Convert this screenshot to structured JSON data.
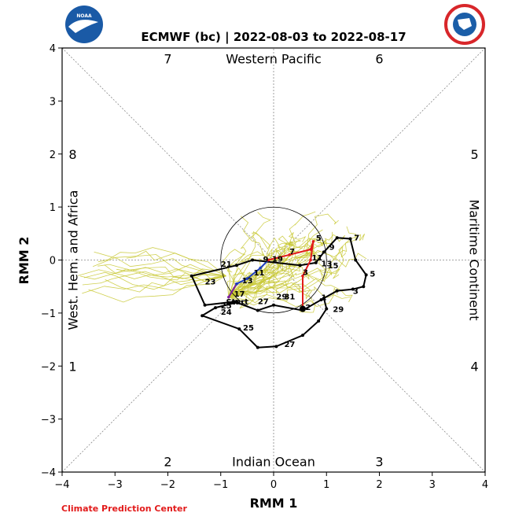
{
  "title": "ECMWF (bc) | 2022-08-03 to 2022-08-17",
  "footer": "Climate Prediction Center",
  "logos": {
    "left": {
      "name": "noaa-logo",
      "text": "NOAA",
      "bg": "#1a5aa6",
      "fg": "#ffffff"
    },
    "right": {
      "name": "nws-logo",
      "text": "NATIONAL WEATHER SERVICE",
      "ring": "#d8262a",
      "inner": "#1b5ea8"
    }
  },
  "chart_data": {
    "type": "line",
    "xlabel": "RMM 1",
    "ylabel": "RMM 2",
    "xlim": [
      -4,
      4
    ],
    "ylim": [
      -4,
      4
    ],
    "ticks": [
      -4,
      -3,
      -2,
      -1,
      0,
      1,
      2,
      3,
      4
    ],
    "tick_labels": [
      "−4",
      "−3",
      "−2",
      "−1",
      "0",
      "1",
      "2",
      "3",
      "4"
    ],
    "unit_circle_radius": 1,
    "phases": [
      {
        "label": "1",
        "x": -3.8,
        "y": -2.0
      },
      {
        "label": "2",
        "x": -2.0,
        "y": -3.8
      },
      {
        "label": "3",
        "x": 2.0,
        "y": -3.8
      },
      {
        "label": "4",
        "x": 3.8,
        "y": -2.0
      },
      {
        "label": "5",
        "x": 3.8,
        "y": 2.0
      },
      {
        "label": "6",
        "x": 2.0,
        "y": 3.8
      },
      {
        "label": "7",
        "x": -2.0,
        "y": 3.8
      },
      {
        "label": "8",
        "x": -3.8,
        "y": 2.0
      }
    ],
    "regions": [
      {
        "label": "Western Pacific",
        "x": 0,
        "y": 3.8,
        "rotate": 0
      },
      {
        "label": "Indian Ocean",
        "x": 0,
        "y": -3.8,
        "rotate": 0
      },
      {
        "label": "West. Hem. and Africa",
        "x": -3.8,
        "y": 0,
        "rotate": -90
      },
      {
        "label": "Maritime Continent",
        "x": 3.8,
        "y": 0,
        "rotate": 90
      }
    ],
    "observed": {
      "color": "#000000",
      "points": [
        [
          -0.7,
          -0.78
        ],
        [
          -1.3,
          -0.85
        ],
        [
          -1.55,
          -0.3
        ],
        [
          -0.7,
          -0.1
        ],
        [
          -0.4,
          0.0
        ],
        [
          0.5,
          -0.1
        ],
        [
          0.8,
          -0.05
        ],
        [
          0.95,
          0.15
        ],
        [
          1.2,
          0.42
        ],
        [
          1.45,
          0.4
        ],
        [
          1.55,
          0.0
        ],
        [
          1.75,
          -0.28
        ],
        [
          1.7,
          -0.5
        ],
        [
          1.5,
          -0.55
        ],
        [
          1.2,
          -0.58
        ],
        [
          0.9,
          -0.75
        ],
        [
          0.55,
          -0.95
        ],
        [
          0.0,
          -0.85
        ],
        [
          -0.3,
          -0.95
        ],
        [
          -0.7,
          -0.8
        ],
        [
          -1.1,
          -0.9
        ],
        [
          -1.35,
          -1.05
        ],
        [
          -0.65,
          -1.3
        ],
        [
          -0.3,
          -1.65
        ],
        [
          0.05,
          -1.63
        ],
        [
          0.55,
          -1.42
        ],
        [
          0.85,
          -1.15
        ],
        [
          1.0,
          -0.92
        ],
        [
          0.95,
          -0.72
        ]
      ],
      "labels": [
        {
          "text": "21",
          "x": -1.0,
          "y": -0.07
        },
        {
          "text": "23",
          "x": -1.3,
          "y": -0.4
        },
        {
          "text": "25",
          "x": -1.0,
          "y": -0.85
        },
        {
          "text": "27",
          "x": -0.3,
          "y": -0.77
        },
        {
          "text": "29",
          "x": 0.05,
          "y": -0.68
        },
        {
          "text": "24",
          "x": -1.0,
          "y": -0.97
        },
        {
          "text": "25",
          "x": -0.58,
          "y": -1.27
        },
        {
          "text": "27",
          "x": 0.2,
          "y": -1.58
        },
        {
          "text": "1",
          "x": 0.9,
          "y": -0.7
        },
        {
          "text": "29",
          "x": 1.12,
          "y": -0.92
        },
        {
          "text": "3",
          "x": 1.5,
          "y": -0.58
        },
        {
          "text": "5",
          "x": 1.82,
          "y": -0.25
        },
        {
          "text": "7",
          "x": 1.52,
          "y": 0.43
        },
        {
          "text": "9",
          "x": 1.05,
          "y": 0.25
        },
        {
          "text": "31",
          "x": 0.2,
          "y": -0.68
        }
      ]
    },
    "forecast": {
      "segments": [
        {
          "color": "#7a1fa2",
          "points": [
            [
              -0.85,
              -0.7
            ],
            [
              -0.7,
              -0.45
            ]
          ]
        },
        {
          "color": "#1f3fbf",
          "points": [
            [
              -0.7,
              -0.45
            ],
            [
              -0.5,
              -0.35
            ],
            [
              -0.25,
              -0.15
            ],
            [
              -0.1,
              0.0
            ]
          ]
        },
        {
          "color": "#e21b1b",
          "points": [
            [
              -0.1,
              0.0
            ],
            [
              0.3,
              0.1
            ],
            [
              0.7,
              0.2
            ],
            [
              0.75,
              0.35
            ],
            [
              0.7,
              0.0
            ],
            [
              0.55,
              -0.3
            ],
            [
              0.55,
              -0.92
            ]
          ]
        }
      ],
      "labels": [
        {
          "text": "Start",
          "x": -0.9,
          "y": -0.78
        },
        {
          "text": "17",
          "x": -0.75,
          "y": -0.63
        },
        {
          "text": "13",
          "x": -0.6,
          "y": -0.38
        },
        {
          "text": "11",
          "x": -0.38,
          "y": -0.23
        },
        {
          "text": "9",
          "x": -0.2,
          "y": 0.02
        },
        {
          "text": "19",
          "x": -0.03,
          "y": 0.03
        },
        {
          "text": "7",
          "x": 0.3,
          "y": 0.17
        },
        {
          "text": "5",
          "x": 0.8,
          "y": 0.42
        },
        {
          "text": "11",
          "x": 0.72,
          "y": 0.05
        },
        {
          "text": "13",
          "x": 0.9,
          "y": -0.06
        },
        {
          "text": "15",
          "x": 1.02,
          "y": -0.1
        },
        {
          "text": "3",
          "x": 0.55,
          "y": -0.22
        },
        {
          "text": "2",
          "x": 0.6,
          "y": -0.88
        }
      ]
    },
    "ensemble_color": "#c8c832"
  }
}
